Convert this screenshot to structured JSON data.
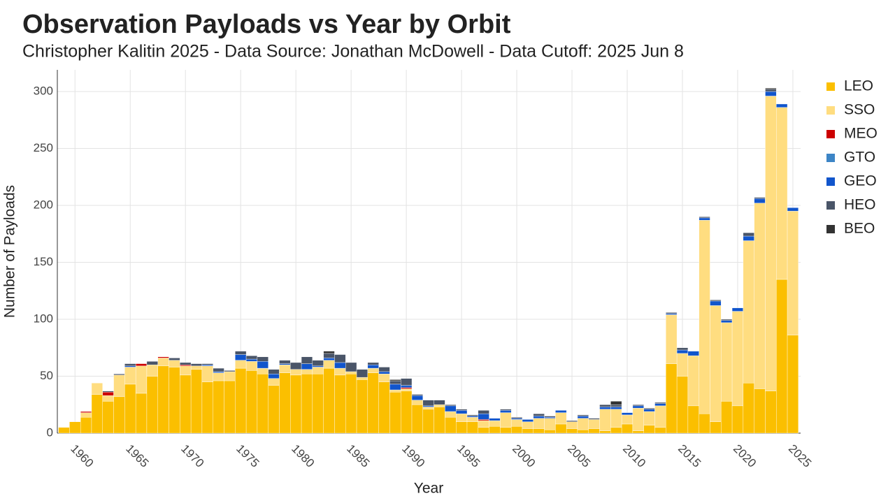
{
  "chart_data": {
    "type": "stacked_bar",
    "title": "Observation Payloads vs Year by Orbit",
    "subtitle": "Christopher Kalitin 2025 - Data Source: Jonathan McDowell - Data Cutoff: 2025 Jun 8",
    "x_label": "Year",
    "y_label": "Number of Payloads",
    "x": [
      1959,
      1960,
      1961,
      1962,
      1963,
      1964,
      1965,
      1966,
      1967,
      1968,
      1969,
      1970,
      1971,
      1972,
      1973,
      1974,
      1975,
      1976,
      1977,
      1978,
      1979,
      1980,
      1981,
      1982,
      1983,
      1984,
      1985,
      1986,
      1987,
      1988,
      1989,
      1990,
      1991,
      1992,
      1993,
      1994,
      1995,
      1996,
      1997,
      1998,
      1999,
      2000,
      2001,
      2002,
      2003,
      2004,
      2005,
      2006,
      2007,
      2008,
      2009,
      2010,
      2011,
      2012,
      2013,
      2014,
      2015,
      2016,
      2017,
      2018,
      2019,
      2020,
      2021,
      2022,
      2023,
      2024,
      2025
    ],
    "xlim": [
      1958.4,
      2025.7
    ],
    "xticks": [
      1960,
      1965,
      1970,
      1975,
      1980,
      1985,
      1990,
      1995,
      2000,
      2005,
      2010,
      2015,
      2020,
      2025
    ],
    "ylim": [
      0,
      319
    ],
    "yticks": [
      0,
      50,
      100,
      150,
      200,
      250,
      300
    ],
    "grid": true,
    "legend": "right",
    "series": [
      {
        "name": "LEO",
        "color": "#fbbf00",
        "values": [
          5,
          10,
          14,
          34,
          28,
          32,
          43,
          35,
          50,
          59,
          58,
          51,
          56,
          45,
          46,
          46,
          57,
          55,
          52,
          42,
          53,
          51,
          52,
          52,
          57,
          51,
          52,
          47,
          53,
          45,
          36,
          37,
          25,
          21,
          23,
          14,
          10,
          10,
          5,
          6,
          5,
          6,
          4,
          4,
          3,
          8,
          4,
          3,
          4,
          2,
          5,
          8,
          2,
          7,
          5,
          61,
          50,
          24,
          17,
          10,
          28,
          24,
          44,
          39,
          37,
          135,
          86
        ]
      },
      {
        "name": "SSO",
        "color": "#ffdd80",
        "values": [
          0,
          0,
          4,
          10,
          5,
          19,
          15,
          24,
          10,
          7,
          6,
          8,
          3,
          14,
          7,
          8,
          7,
          8,
          5,
          6,
          7,
          5,
          4,
          6,
          7,
          6,
          2,
          2,
          4,
          7,
          2,
          2,
          4,
          2,
          2,
          5,
          7,
          4,
          6,
          5,
          13,
          6,
          6,
          9,
          10,
          10,
          6,
          10,
          8,
          19,
          16,
          8,
          20,
          12,
          19,
          43,
          20,
          44,
          170,
          102,
          69,
          83,
          125,
          163,
          259,
          151,
          109
        ]
      },
      {
        "name": "MEO",
        "color": "#cc0000",
        "values": [
          0,
          0,
          1,
          0,
          3,
          0,
          0,
          2,
          0,
          1,
          0,
          1,
          0,
          0,
          0,
          0,
          0,
          0,
          0,
          0,
          0,
          0,
          0,
          0,
          0,
          0,
          0,
          0,
          0,
          0,
          0,
          1,
          0,
          0,
          0,
          0,
          0,
          0,
          1,
          0,
          0,
          0,
          0,
          0,
          0,
          0,
          0,
          0,
          0,
          0,
          0,
          0,
          0,
          0,
          0,
          0,
          0,
          0,
          0,
          0,
          0,
          0,
          0,
          0,
          0,
          0,
          0
        ]
      },
      {
        "name": "GTO",
        "color": "#3d85c6",
        "values": [
          0,
          0,
          0,
          0,
          0,
          0,
          0,
          0,
          0,
          0,
          0,
          0,
          0,
          0,
          0,
          0,
          0,
          0,
          0,
          0,
          0,
          0,
          0,
          0,
          0,
          0,
          0,
          0,
          0,
          0,
          0,
          0,
          0,
          0,
          0,
          0,
          0,
          0,
          0,
          0,
          0,
          0,
          0,
          0,
          0,
          0,
          0,
          0,
          0,
          0,
          0,
          0,
          0,
          0,
          0,
          0,
          0,
          0,
          0,
          0,
          0,
          0,
          0,
          0,
          0,
          0,
          0
        ]
      },
      {
        "name": "GEO",
        "color": "#1155cc",
        "values": [
          0,
          0,
          0,
          0,
          0,
          0,
          1,
          0,
          0,
          0,
          0,
          0,
          0,
          1,
          1,
          0,
          5,
          2,
          6,
          4,
          1,
          0,
          5,
          1,
          2,
          5,
          0,
          0,
          3,
          2,
          5,
          2,
          4,
          1,
          0,
          5,
          3,
          1,
          5,
          2,
          2,
          1,
          2,
          2,
          1,
          2,
          0,
          2,
          0,
          2,
          2,
          2,
          2,
          2,
          2,
          1,
          3,
          4,
          2,
          4,
          2,
          3,
          4,
          4,
          4,
          3,
          3
        ]
      },
      {
        "name": "HEO",
        "color": "#4a5568",
        "values": [
          0,
          0,
          0,
          0,
          1,
          1,
          2,
          0,
          3,
          0,
          2,
          2,
          2,
          1,
          3,
          1,
          3,
          3,
          4,
          4,
          3,
          6,
          6,
          5,
          4,
          7,
          8,
          7,
          2,
          4,
          3,
          6,
          1,
          5,
          4,
          1,
          1,
          1,
          3,
          0,
          1,
          1,
          0,
          2,
          1,
          0,
          1,
          1,
          1,
          2,
          2,
          0,
          1,
          1,
          1,
          1,
          2,
          0,
          1,
          1,
          1,
          0,
          3,
          1,
          2,
          0,
          0
        ]
      },
      {
        "name": "BEO",
        "color": "#333333",
        "values": [
          0,
          0,
          0,
          0,
          0,
          0,
          0,
          0,
          0,
          0,
          0,
          0,
          0,
          0,
          0,
          0,
          0,
          0,
          0,
          0,
          0,
          0,
          0,
          0,
          2,
          0,
          0,
          0,
          0,
          0,
          1,
          0,
          0,
          0,
          0,
          0,
          0,
          0,
          0,
          0,
          0,
          0,
          0,
          0,
          0,
          0,
          0,
          0,
          0,
          0,
          3,
          0,
          0,
          0,
          0,
          0,
          0,
          0,
          0,
          0,
          0,
          0,
          0,
          0,
          1,
          0,
          0
        ]
      }
    ]
  }
}
